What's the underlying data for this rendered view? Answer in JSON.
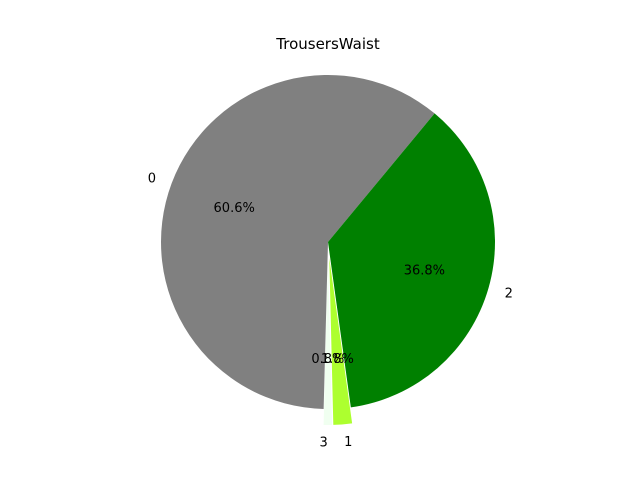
{
  "chart_data": {
    "type": "pie",
    "title": "TrousersWaist",
    "slices": [
      {
        "label": "0",
        "value": 60.6,
        "pct_label": "60.6%",
        "color": "#808080",
        "explode": false
      },
      {
        "label": "2",
        "value": 36.8,
        "pct_label": "36.8%",
        "color": "#008000",
        "explode": false
      },
      {
        "label": "1",
        "value": 1.8,
        "pct_label": "1.8%",
        "color": "#adff2f",
        "explode": true
      },
      {
        "label": "3",
        "value": 0.8,
        "pct_label": "0.8%",
        "color": "#f0fff0",
        "explode": true
      }
    ]
  }
}
